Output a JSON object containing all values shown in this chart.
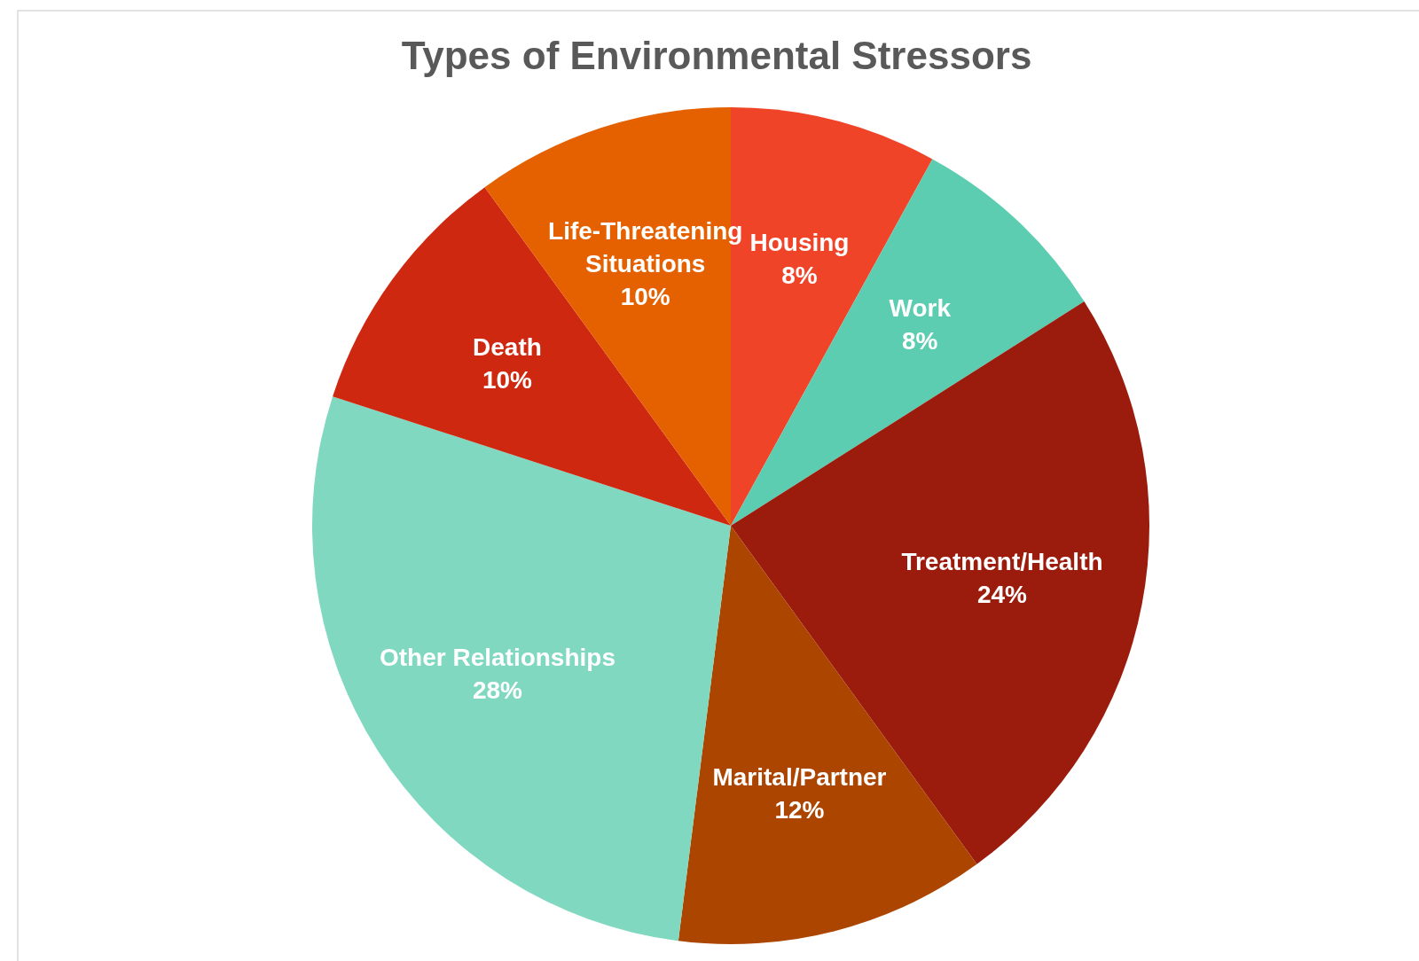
{
  "chart_data": {
    "type": "pie",
    "title": "Types of Environmental Stressors",
    "categories": [
      "Housing",
      "Work",
      "Treatment/Health",
      "Marital/Partner",
      "Other Relationships",
      "Death",
      "Life-Threatening Situations"
    ],
    "values": [
      8,
      8,
      24,
      12,
      28,
      10,
      10
    ],
    "colors": [
      "#ef4428",
      "#5ccdb0",
      "#9b1c0c",
      "#ab4500",
      "#80d8c0",
      "#cf2810",
      "#e56100"
    ],
    "value_labels": [
      "8%",
      "8%",
      "24%",
      "12%",
      "28%",
      "10%",
      "10%"
    ]
  }
}
